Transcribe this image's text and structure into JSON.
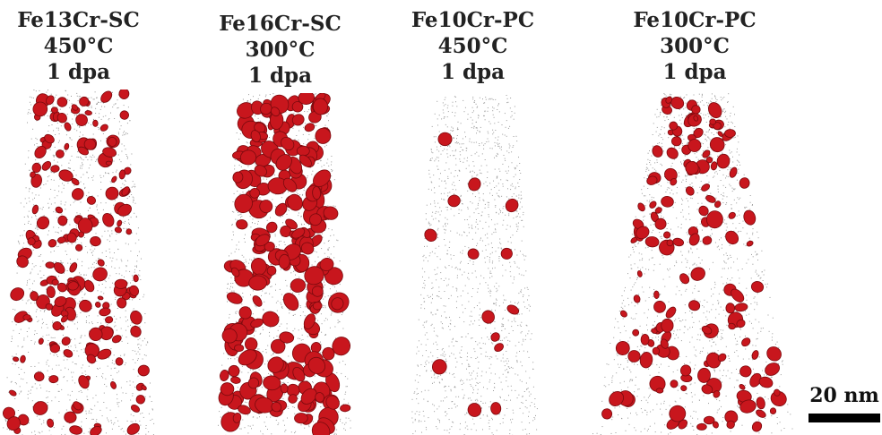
{
  "panels": [
    {
      "label_lines": [
        "Fe13Cr-SC",
        "450°C",
        "1 dpa"
      ],
      "precipitate_density": "high"
    },
    {
      "label_lines": [
        "Fe16Cr-SC",
        "300°C",
        "1 dpa"
      ],
      "precipitate_density": "very-high"
    },
    {
      "label_lines": [
        "Fe10Cr-PC",
        "450°C",
        "1 dpa"
      ],
      "precipitate_density": "low"
    },
    {
      "label_lines": [
        "Fe10Cr-PC",
        "300°C",
        "1 dpa"
      ],
      "precipitate_density": "medium"
    }
  ],
  "scale_bar": {
    "label": "20 nm"
  },
  "colors": {
    "precipitate": "#c8161d",
    "precipitate_dark": "#7a0a0e",
    "matrix_dots": "#9a9a9a"
  }
}
